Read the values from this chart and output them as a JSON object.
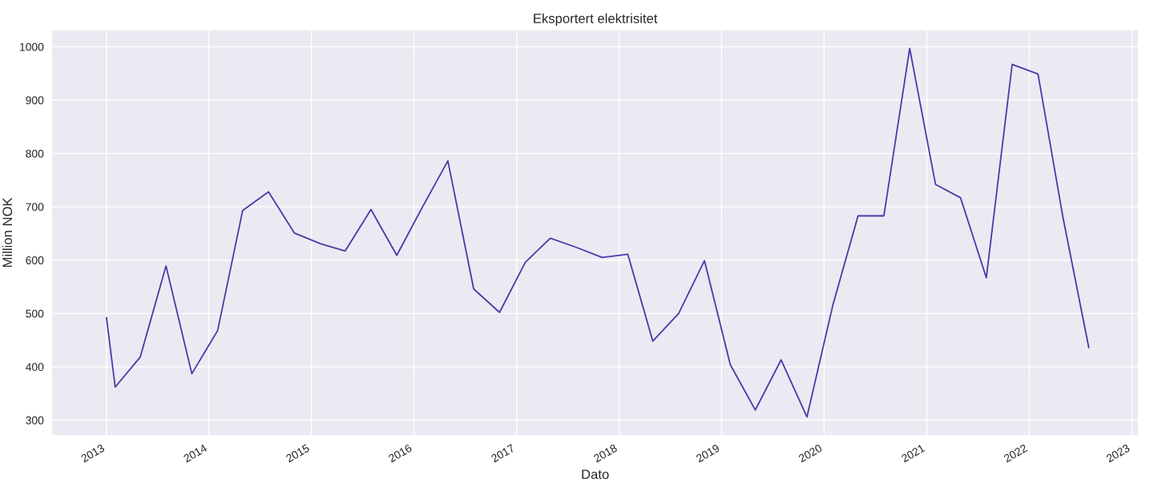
{
  "chart_data": {
    "type": "line",
    "title": "Eksportert elektrisitet",
    "xlabel": "Dato",
    "ylabel": "Million NOK",
    "x": [
      "2013-01",
      "2013-02",
      "2013-05",
      "2013-08",
      "2013-11",
      "2014-02",
      "2014-05",
      "2014-08",
      "2014-11",
      "2015-02",
      "2015-05",
      "2015-08",
      "2015-11",
      "2016-02",
      "2016-05",
      "2016-08",
      "2016-11",
      "2017-02",
      "2017-05",
      "2017-08",
      "2017-11",
      "2018-02",
      "2018-05",
      "2018-08",
      "2018-11",
      "2019-02",
      "2019-05",
      "2019-08",
      "2019-11",
      "2020-02",
      "2020-05",
      "2020-08",
      "2020-11",
      "2021-02",
      "2021-05",
      "2021-08",
      "2021-11",
      "2022-02",
      "2022-05",
      "2022-08"
    ],
    "series": [
      {
        "color": "#4a3aa8",
        "values": [
          492,
          362,
          418,
          589,
          387,
          468,
          693,
          728,
          651,
          631,
          617,
          695,
          609,
          700,
          786,
          546,
          502,
          596,
          641,
          624,
          605,
          611,
          448,
          500,
          599,
          404,
          319,
          413,
          306,
          515,
          683,
          683,
          997,
          742,
          717,
          567,
          967,
          949,
          680,
          436
        ]
      }
    ],
    "xlim": [
      "2012-06-20",
      "2023-01-25"
    ],
    "ylim": [
      271,
      1032
    ],
    "xticks": [
      "2013",
      "2014",
      "2015",
      "2016",
      "2017",
      "2018",
      "2019",
      "2020",
      "2021",
      "2022",
      "2023"
    ],
    "yticks": [
      300,
      400,
      500,
      600,
      700,
      800,
      900,
      1000
    ],
    "grid": true,
    "marker": "none",
    "line_style": "solid"
  }
}
